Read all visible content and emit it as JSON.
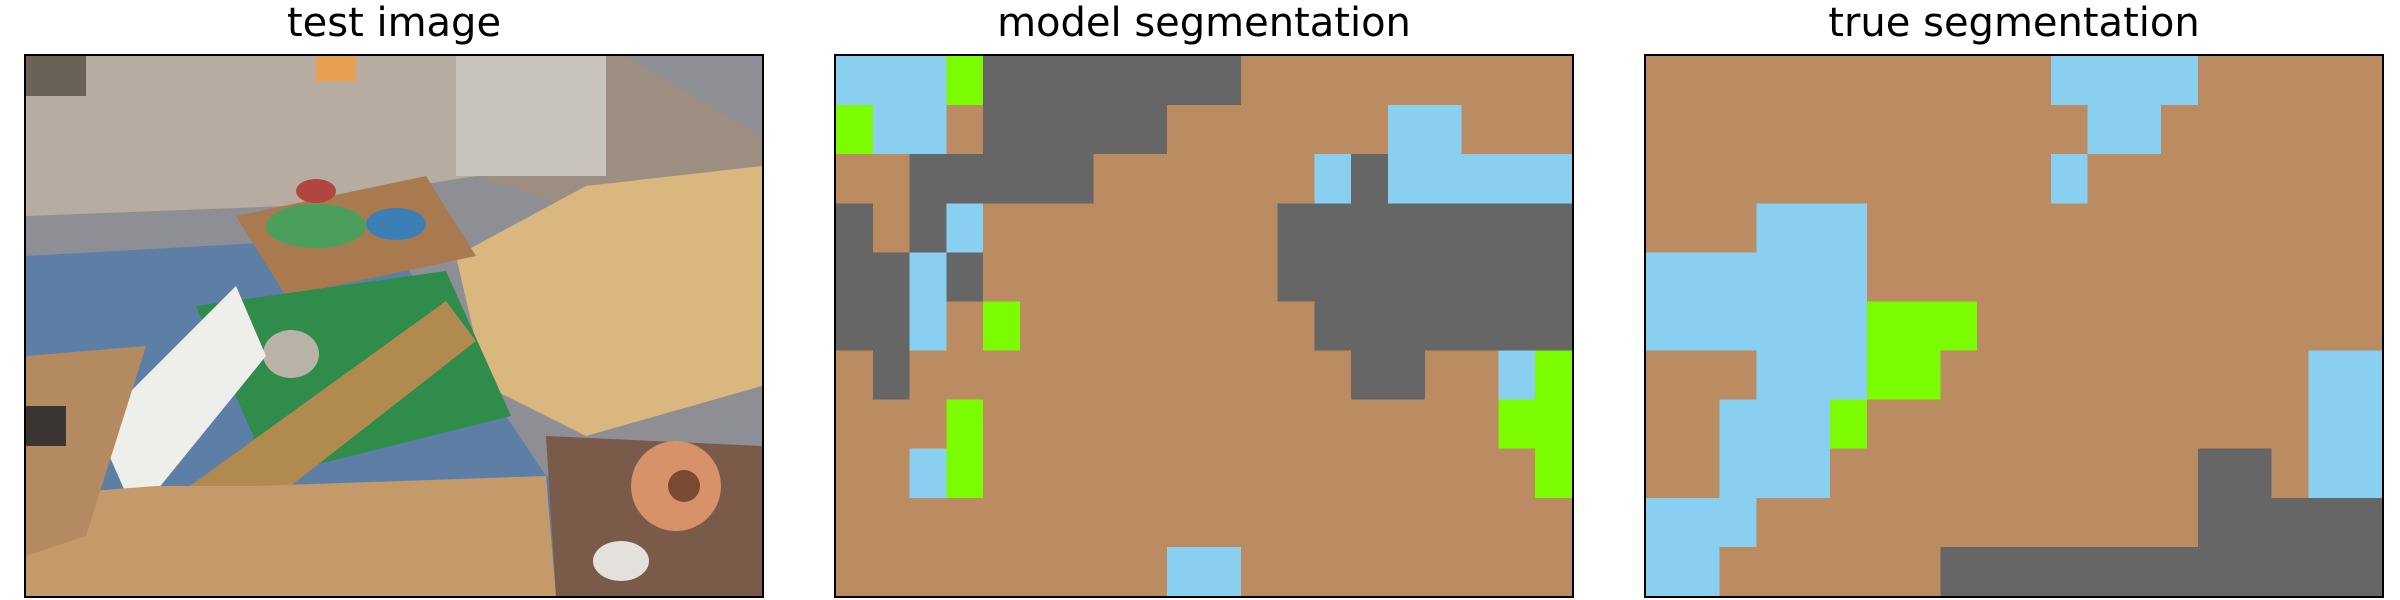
{
  "panels": [
    {
      "title": "test image"
    },
    {
      "title": "model segmentation"
    },
    {
      "title": "true segmentation"
    }
  ],
  "colors": {
    "brown": "#bb8b62",
    "sky": "#89cff0",
    "gray": "#666666",
    "green": "#7cfc00"
  },
  "grid_size": {
    "cols": 20,
    "rows": 11
  },
  "model_segmentation": [
    "SSSGDDDDDDDBBBBBBBBB",
    "GSSBDDDDDBBBBBBSSBBB",
    "BBDDDDDBBBBBBSDSSSSS",
    "DBDSBBBBBBBBDDDDDDDD",
    "DDSDBBBBBBBBDDDDDDDD",
    "DDSBGBBBBBBBBDDDDDDD",
    "BDBBBBBBBBBBBBDDBBSG",
    "BBBGBBBBBBBBBBBBBBGG",
    "BBSGBBBBBBBBBBBBBBBG",
    "BBBBBBBBBBBBBBBBBBBB",
    "BBBBBBBBBSSBBBBBBBBB"
  ],
  "true_segmentation": [
    "BBBBBBBBBBBSSSSBBBBB",
    "BBBBBBBBBBBBSSBBBBBB",
    "BBBBBBBBBBBSBBBBBBBB",
    "BBBSSSBBBBBBBBBBBBBB",
    "SSSSSSBBBBBBBBBBBBBB",
    "SSSSSSGGGBBBBBBBBBBB",
    "BBBSSSGGBBBBBBBBBBSS",
    "BBSSSGBBBBBBBBBBBBSS",
    "BBSSSBBBBBBBBBBDDBSS",
    "SSSBBBBBBBBBBBBDDDDD",
    "SSBBBBBBDDDDDDDDDDDD"
  ]
}
